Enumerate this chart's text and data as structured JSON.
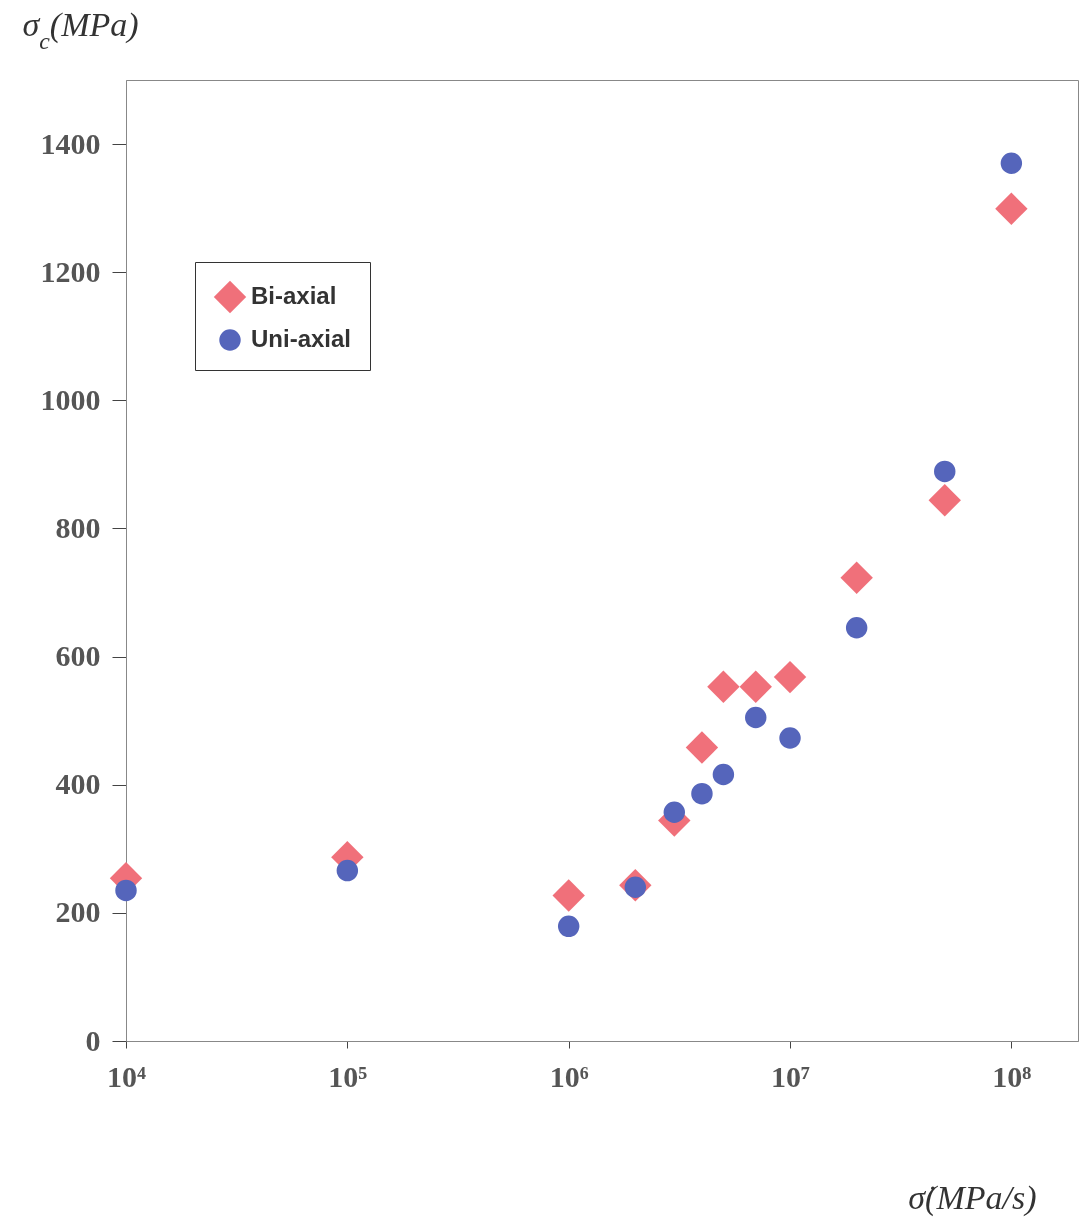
{
  "chart_data": {
    "type": "scatter",
    "xlabel": "σ̇(MPa/s)",
    "ylabel": "σ$_{c}$(MPa)",
    "log": "x",
    "xlim": [
      10000,
      200000000
    ],
    "ylim": [
      0,
      1500
    ],
    "xticks": [
      {
        "value": 10000,
        "label": "10⁴"
      },
      {
        "value": 100000,
        "label": "10⁵"
      },
      {
        "value": 1000000,
        "label": "10⁶"
      },
      {
        "value": 10000000,
        "label": "10⁷"
      },
      {
        "value": 100000000,
        "label": "10⁸"
      }
    ],
    "yticks": [
      0,
      200,
      400,
      600,
      800,
      1000,
      1200,
      1400
    ],
    "legend": "top left",
    "grid": false,
    "series": [
      {
        "name": "Bi-axial",
        "color": "#f0707a",
        "marker": "diamond",
        "x": [
          10000,
          100000,
          1000000,
          2000000,
          3000000,
          4000000,
          5000000,
          7000000,
          10000000,
          20000000,
          50000000,
          100000000
        ],
        "values": [
          254,
          287,
          227,
          243,
          344,
          458,
          553,
          553,
          568,
          723,
          844,
          1299
        ]
      },
      {
        "name": "Uni-axial",
        "color": "#5565bb",
        "marker": "circle",
        "x": [
          10000,
          100000,
          1000000,
          2000000,
          3000000,
          4000000,
          5000000,
          7000000,
          10000000,
          20000000,
          50000000,
          100000000
        ],
        "values": [
          235,
          266,
          179,
          240,
          357,
          386,
          416,
          505,
          473,
          645,
          889,
          1370
        ]
      }
    ]
  }
}
